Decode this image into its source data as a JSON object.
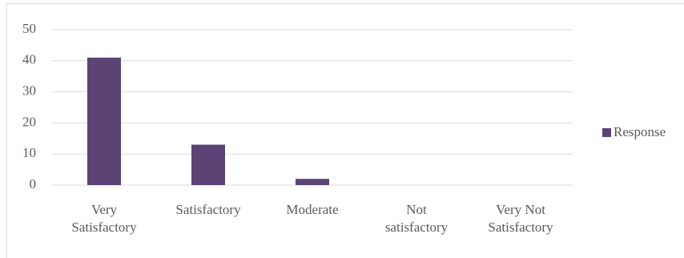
{
  "chart_data": {
    "type": "bar",
    "categories": [
      "Very Satisfactory",
      "Satisfactory",
      "Moderate",
      "Not satisfactory",
      "Very Not Satisfactory"
    ],
    "series": [
      {
        "name": "Response",
        "color": "#5b4475",
        "values": [
          41,
          13,
          2,
          0,
          0
        ]
      }
    ],
    "ylim": [
      0,
      50
    ],
    "yticks": [
      0,
      10,
      20,
      30,
      40,
      50
    ],
    "grid": true,
    "legend": "right"
  }
}
